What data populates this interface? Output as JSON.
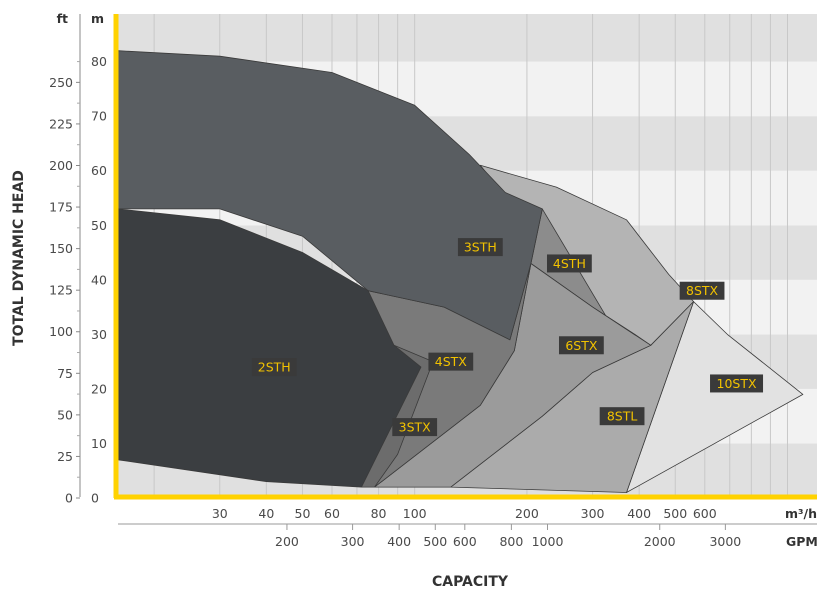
{
  "chart_data": {
    "type": "area",
    "ylabel": "TOTAL DYNAMIC HEAD",
    "xlabel": "CAPACITY",
    "y_units": {
      "primary": "ft",
      "secondary": "m"
    },
    "x_units": {
      "primary": "m³/h",
      "secondary": "GPM"
    },
    "ft_ticks": [
      "0",
      "25",
      "50",
      "75",
      "100",
      "125",
      "150",
      "175",
      "200",
      "225",
      "250"
    ],
    "m_ticks": [
      "0",
      "10",
      "20",
      "30",
      "40",
      "50",
      "60",
      "70",
      "80"
    ],
    "m3h_ticks": [
      "30",
      "40",
      "50",
      "60",
      "80",
      "100",
      "200",
      "300",
      "400",
      "500",
      "600"
    ],
    "gpm_ticks": [
      "200",
      "300",
      "400",
      "500",
      "600",
      "800",
      "1000",
      "2000",
      "3000"
    ],
    "ylim_m": [
      0,
      88
    ],
    "xlim_m3h": [
      16,
      1200
    ],
    "grid": true,
    "accent_color": "#ffd200",
    "series": [
      {
        "name": "10STX",
        "color": "#e2e2e2",
        "label_pos": [
          730,
          21
        ],
        "outline": [
          [
            370,
            1
          ],
          [
            560,
            36
          ],
          [
            690,
            30
          ],
          [
            1100,
            19
          ],
          [
            370,
            1
          ]
        ]
      },
      {
        "name": "8STX",
        "color": "#b4b4b4",
        "label_pos": [
          590,
          38
        ],
        "outline": [
          [
            150,
            61
          ],
          [
            240,
            57
          ],
          [
            370,
            51
          ],
          [
            480,
            41
          ],
          [
            560,
            36
          ],
          [
            430,
            28
          ],
          [
            370,
            27
          ],
          [
            150,
            61
          ]
        ]
      },
      {
        "name": "8STL",
        "color": "#ababab",
        "label_pos": [
          360,
          15
        ],
        "outline": [
          [
            125,
            2
          ],
          [
            220,
            15
          ],
          [
            300,
            23
          ],
          [
            430,
            28
          ],
          [
            560,
            36
          ],
          [
            370,
            1
          ],
          [
            125,
            2
          ]
        ]
      },
      {
        "name": "4STH",
        "color": "#8c8c8c",
        "label_pos": [
          260,
          43
        ],
        "outline": [
          [
            220,
            53
          ],
          [
            205,
            43
          ],
          [
            300,
            35
          ],
          [
            390,
            30
          ],
          [
            430,
            28
          ],
          [
            370,
            27
          ],
          [
            220,
            53
          ]
        ]
      },
      {
        "name": "6STX",
        "color": "#9b9b9b",
        "label_pos": [
          280,
          28
        ],
        "outline": [
          [
            205,
            43
          ],
          [
            300,
            35
          ],
          [
            430,
            28
          ],
          [
            300,
            23
          ],
          [
            220,
            15
          ],
          [
            125,
            2
          ],
          [
            78,
            2
          ],
          [
            150,
            17
          ],
          [
            185,
            27
          ],
          [
            205,
            43
          ]
        ]
      },
      {
        "name": "4STX",
        "color": "#7a7a7a",
        "label_pos": [
          125,
          25
        ],
        "outline": [
          [
            75,
            38
          ],
          [
            120,
            35
          ],
          [
            180,
            29
          ],
          [
            205,
            43
          ],
          [
            185,
            27
          ],
          [
            150,
            17
          ],
          [
            78,
            2
          ],
          [
            72,
            2
          ],
          [
            75,
            38
          ]
        ]
      },
      {
        "name": "3STX",
        "color": "#6c6c6c",
        "label_pos": [
          100,
          13
        ],
        "outline": [
          [
            88,
            28
          ],
          [
            112,
            25
          ],
          [
            90,
            8
          ],
          [
            78,
            2
          ],
          [
            72,
            2
          ],
          [
            88,
            28
          ]
        ]
      },
      {
        "name": "3STH",
        "color": "#595d61",
        "label_pos": [
          150,
          46
        ],
        "outline": [
          [
            16,
            82
          ],
          [
            30,
            81
          ],
          [
            60,
            78
          ],
          [
            100,
            72
          ],
          [
            140,
            63
          ],
          [
            175,
            56
          ],
          [
            220,
            53
          ],
          [
            205,
            43
          ],
          [
            180,
            29
          ],
          [
            120,
            35
          ],
          [
            75,
            38
          ],
          [
            50,
            48
          ],
          [
            30,
            53
          ],
          [
            16,
            53
          ],
          [
            16,
            82
          ]
        ]
      },
      {
        "name": "2STH",
        "color": "#3b3e41",
        "label_pos": [
          42,
          24
        ],
        "outline": [
          [
            16,
            53
          ],
          [
            30,
            51
          ],
          [
            50,
            45
          ],
          [
            75,
            38
          ],
          [
            88,
            28
          ],
          [
            104,
            24
          ],
          [
            72,
            2
          ],
          [
            40,
            3
          ],
          [
            16,
            7
          ],
          [
            16,
            53
          ]
        ]
      }
    ]
  }
}
